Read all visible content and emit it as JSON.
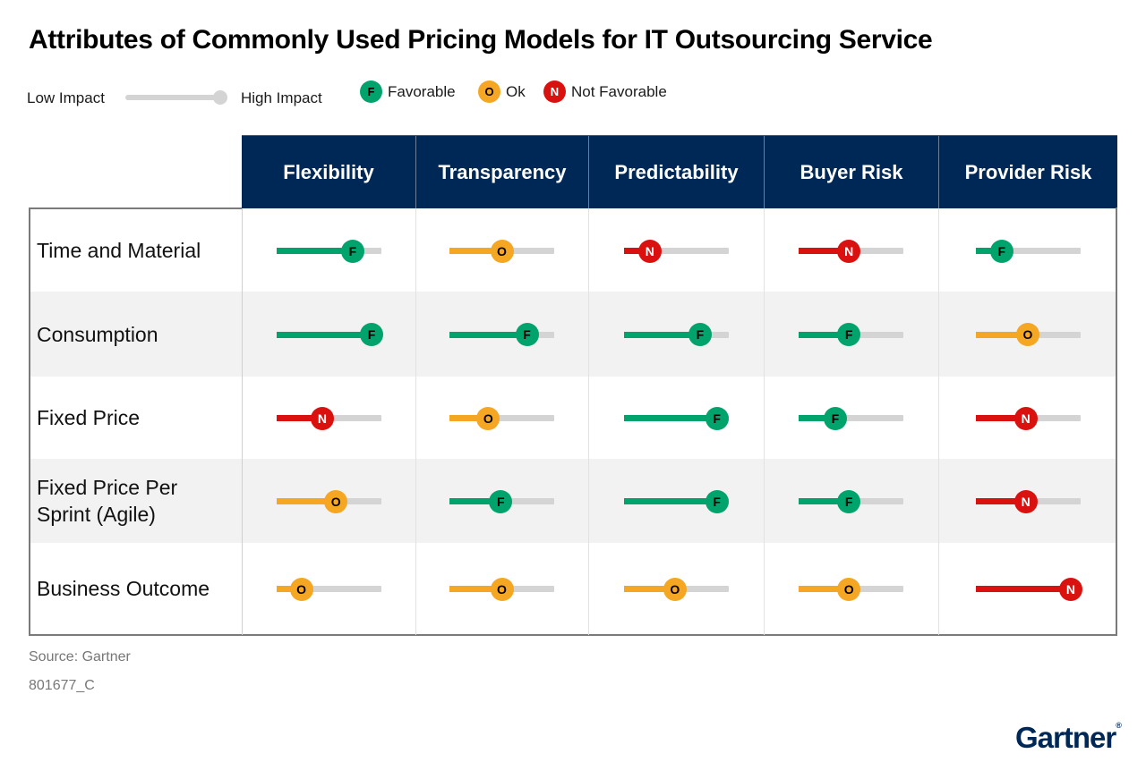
{
  "title": "Attributes of Commonly Used Pricing Models for IT Outsourcing Service",
  "legend": {
    "low": "Low Impact",
    "high": "High Impact",
    "items": [
      {
        "key": "F",
        "label": "Favorable",
        "color": "#00a36c",
        "text_color": "#000000"
      },
      {
        "key": "O",
        "label": "Ok",
        "color": "#f5a623",
        "text_color": "#000000"
      },
      {
        "key": "N",
        "label": "Not Favorable",
        "color": "#d9120f",
        "text_color": "#ffffff"
      }
    ]
  },
  "colors": {
    "F": "#00a36c",
    "O": "#f5a623",
    "N": "#d9120f",
    "track": "#d4d4d4",
    "header": "#002856"
  },
  "chart_data": {
    "type": "table",
    "columns": [
      "Flexibility",
      "Transparency",
      "Predictability",
      "Buyer Risk",
      "Provider Risk"
    ],
    "rows": [
      {
        "label": "Time and Material",
        "cells": [
          {
            "rating": "F",
            "impact": 0.73
          },
          {
            "rating": "O",
            "impact": 0.5
          },
          {
            "rating": "N",
            "impact": 0.25
          },
          {
            "rating": "N",
            "impact": 0.48
          },
          {
            "rating": "F",
            "impact": 0.25
          }
        ]
      },
      {
        "label": "Consumption",
        "cells": [
          {
            "rating": "F",
            "impact": 0.91
          },
          {
            "rating": "F",
            "impact": 0.74
          },
          {
            "rating": "F",
            "impact": 0.73
          },
          {
            "rating": "F",
            "impact": 0.48
          },
          {
            "rating": "O",
            "impact": 0.5
          }
        ]
      },
      {
        "label": "Fixed Price",
        "cells": [
          {
            "rating": "N",
            "impact": 0.44
          },
          {
            "rating": "O",
            "impact": 0.37
          },
          {
            "rating": "F",
            "impact": 0.89
          },
          {
            "rating": "F",
            "impact": 0.35
          },
          {
            "rating": "N",
            "impact": 0.48
          }
        ]
      },
      {
        "label": "Fixed Price Per Sprint (Agile)",
        "cells": [
          {
            "rating": "O",
            "impact": 0.57
          },
          {
            "rating": "F",
            "impact": 0.49
          },
          {
            "rating": "F",
            "impact": 0.89
          },
          {
            "rating": "F",
            "impact": 0.48
          },
          {
            "rating": "N",
            "impact": 0.48
          }
        ]
      },
      {
        "label": "Business Outcome",
        "cells": [
          {
            "rating": "O",
            "impact": 0.24
          },
          {
            "rating": "O",
            "impact": 0.5
          },
          {
            "rating": "O",
            "impact": 0.49
          },
          {
            "rating": "O",
            "impact": 0.48
          },
          {
            "rating": "N",
            "impact": 0.91
          }
        ]
      }
    ]
  },
  "footer": {
    "source": "Source: Gartner",
    "code": "801677_C",
    "logo": "Gartner",
    "logo_mark": "®"
  }
}
